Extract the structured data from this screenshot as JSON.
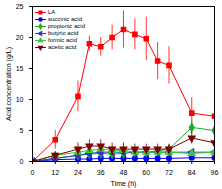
{
  "chart_data": {
    "type": "line",
    "x_label": "Time (h)",
    "y_label": "Acid concentration (g/L)",
    "x": [
      0,
      12,
      24,
      30,
      36,
      42,
      48,
      54,
      60,
      66,
      72,
      84,
      96
    ],
    "xlim": [
      0,
      96
    ],
    "xticks": [
      0,
      12,
      24,
      36,
      48,
      60,
      72,
      84,
      96
    ],
    "ylim": [
      0,
      25
    ],
    "yticks": [
      0,
      5,
      10,
      15,
      20,
      25
    ],
    "legend": "top-left",
    "series": [
      {
        "name": "LA",
        "color": "#ff0000",
        "marker": "square",
        "values": [
          0,
          3.5,
          10.5,
          19,
          18.5,
          20,
          21.3,
          20.5,
          19.8,
          16.2,
          15.5,
          7.8,
          7.3
        ],
        "errors": [
          0,
          1.5,
          2.5,
          1.2,
          1.5,
          2,
          3,
          2.5,
          3.5,
          3,
          3,
          2.5,
          2.2
        ]
      },
      {
        "name": "succinic acid",
        "color": "#0000ff",
        "marker": "circle",
        "values": [
          0,
          0.3,
          0.4,
          0.4,
          0.5,
          0.5,
          0.5,
          0.5,
          0.5,
          0.5,
          0.5,
          0.6,
          0.6
        ],
        "errors": [
          0,
          0.1,
          0.2,
          0.2,
          0.2,
          0.2,
          0.2,
          0.2,
          0.2,
          0.2,
          0.2,
          0.2,
          0.2
        ]
      },
      {
        "name": "propionic acid",
        "color": "#22aa22",
        "marker": "diamond",
        "values": [
          0,
          0.5,
          1,
          1.2,
          1.3,
          1.2,
          1.3,
          1.5,
          1.5,
          1.7,
          2,
          5.5,
          5
        ],
        "errors": [
          0,
          0.2,
          0.3,
          0.3,
          0.3,
          0.3,
          0.3,
          0.3,
          0.3,
          0.5,
          0.5,
          1.2,
          0.8
        ]
      },
      {
        "name": "butyric acid",
        "color": "#3333cc",
        "marker": "triangle-left",
        "values": [
          0,
          0.5,
          1,
          1.3,
          1.5,
          1.5,
          1.5,
          1.5,
          1.5,
          1.5,
          1.5,
          1.5,
          1.5
        ],
        "errors": [
          0,
          0.2,
          0.3,
          0.3,
          0.3,
          0.3,
          0.3,
          0.3,
          0.3,
          0.3,
          0.3,
          0.3,
          0.3
        ]
      },
      {
        "name": "formic acid",
        "color": "#33cc33",
        "marker": "triangle",
        "values": [
          0,
          1,
          1.5,
          1.8,
          2,
          1.8,
          1.8,
          1.5,
          1.5,
          1.5,
          1.5,
          1.3,
          1.5
        ],
        "errors": [
          0,
          0.4,
          0.5,
          0.5,
          0.5,
          0.5,
          0.5,
          0.5,
          0.5,
          0.5,
          0.5,
          0.5,
          0.5
        ]
      },
      {
        "name": "acetic acid",
        "color": "#800000",
        "marker": "triangle-down",
        "values": [
          0,
          1,
          2,
          2.5,
          2.5,
          2,
          2,
          2,
          2,
          2,
          2,
          3.8,
          3
        ],
        "errors": [
          0,
          0.5,
          1,
          1,
          1,
          1,
          1,
          0.8,
          0.8,
          0.8,
          0.8,
          1,
          0.8
        ]
      }
    ]
  }
}
